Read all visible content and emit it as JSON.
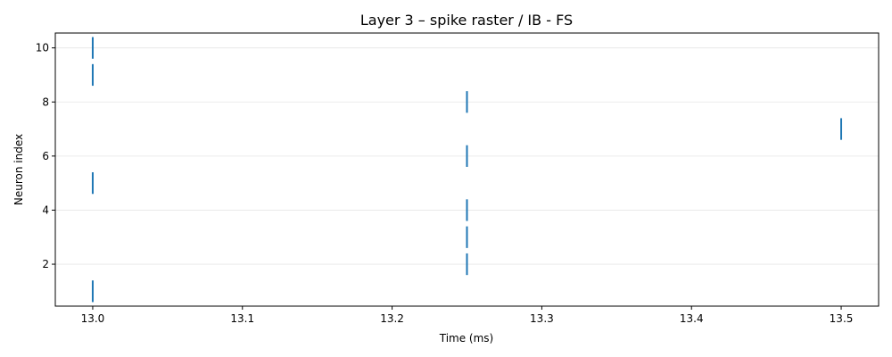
{
  "chart_data": {
    "type": "scatter",
    "marker": "vertical-line",
    "title": "Layer 3 – spike raster / IB - FS",
    "xlabel": "Time (ms)",
    "ylabel": "Neuron index",
    "xlim": [
      12.975,
      13.525
    ],
    "ylim": [
      0.45,
      10.55
    ],
    "xticks": [
      13.0,
      13.1,
      13.2,
      13.3,
      13.4,
      13.5
    ],
    "xtick_labels": [
      "13.0",
      "13.1",
      "13.2",
      "13.3",
      "13.4",
      "13.5"
    ],
    "yticks": [
      2,
      4,
      6,
      8,
      10
    ],
    "ytick_labels": [
      "2",
      "4",
      "6",
      "8",
      "10"
    ],
    "grid": "horizontal",
    "color": "#1f77b4",
    "spikes": [
      {
        "time": 13.0,
        "neuron": 1
      },
      {
        "time": 13.25,
        "neuron": 2
      },
      {
        "time": 13.25,
        "neuron": 3
      },
      {
        "time": 13.25,
        "neuron": 4
      },
      {
        "time": 13.0,
        "neuron": 5
      },
      {
        "time": 13.25,
        "neuron": 6
      },
      {
        "time": 13.5,
        "neuron": 7
      },
      {
        "time": 13.25,
        "neuron": 8
      },
      {
        "time": 13.0,
        "neuron": 9
      },
      {
        "time": 13.0,
        "neuron": 10
      }
    ]
  }
}
